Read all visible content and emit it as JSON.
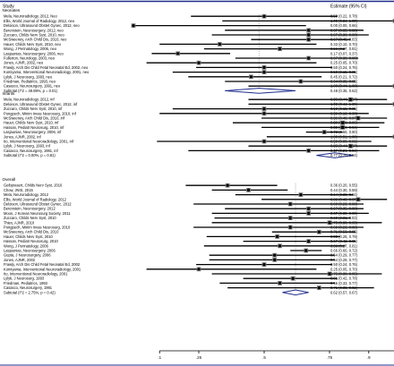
{
  "header": {
    "study_label": "Study",
    "estimate_label": "Estimate (95% CI)"
  },
  "chart_data": {
    "type": "forest",
    "xticks": [
      ".1",
      ".25",
      ".5",
      ".75",
      ".9",
      "1"
    ],
    "xtick_values": [
      0.1,
      0.25,
      0.5,
      0.75,
      0.9,
      1.0
    ],
    "xlim": [
      0.0,
      1.0
    ],
    "sections": [
      {
        "title": "Neonates",
        "rows": [
          {
            "label": "Mela, Neuroradiology, 2012, Neo",
            "est": 0.5,
            "lo": 0.22,
            "hi": 0.78,
            "text": "0.50 (0.22, 0.78)"
          },
          {
            "label": "Ellis, World Journal of Radiology, 2012, neo",
            "est": 1.0,
            "lo": 0.34,
            "hi": 1.0,
            "text": "1.00 (0.34, 1.00)"
          },
          {
            "label": "Deloison, Ultrasound Obstet Gynec, 2012, neo",
            "est": 0.0,
            "lo": 0.0,
            "hi": 0.66,
            "text": "0.00 (0.00, 0.66)"
          },
          {
            "label": "Berenstein, Neurosurgery, 2012, neo",
            "est": 0.67,
            "lo": 0.35,
            "hi": 0.88,
            "text": "0.67 (0.35, 0.88)"
          },
          {
            "label": "Zuccaro, Childs Nerv Syst, 2010, neo",
            "est": 0.67,
            "lo": 0.3,
            "hi": 0.9,
            "text": "0.67 (0.30, 0.90)"
          },
          {
            "label": "McSweeney, Arch Child Dis, 2010, neo",
            "est": 0.67,
            "lo": 0.45,
            "hi": 0.83,
            "text": "0.67 (0.45, 0.83)"
          },
          {
            "label": "Hauer, Childs Nerv Syst, 2010, neo",
            "est": 0.33,
            "lo": 0.1,
            "hi": 0.7,
            "text": "0.33 (0.10, 0.70)"
          },
          {
            "label": "Wong, J Perinatology, 2006, neo",
            "est": 0.56,
            "lo": 0.27,
            "hi": 0.81,
            "text": "0.56 (0.27, 0.81)"
          },
          {
            "label": "Lasjaunias, Neurosurgery, 2006, neo",
            "est": 0.17,
            "lo": 0.07,
            "hi": 0.37,
            "text": "0.17 (0.07, 0.37)"
          },
          {
            "label": "Fullerton, Neurology, 2003, neo",
            "est": 0.67,
            "lo": 0.39,
            "hi": 0.86,
            "text": "0.67 (0.39, 0.86)"
          },
          {
            "label": "Jones, AJNR, 2002, neo",
            "est": 0.25,
            "lo": 0.05,
            "hi": 0.7,
            "text": "0.25 (0.05, 0.70)"
          },
          {
            "label": "Frawly, Arch Dis Child Fetal Neonatal Ed, 2002, neo",
            "est": 0.5,
            "lo": 0.24,
            "hi": 0.76,
            "text": "0.50 (0.24, 0.76)"
          },
          {
            "label": "Komiyama, Interventional Neuroradiology, 2001, neo",
            "est": 0.5,
            "lo": 0.15,
            "hi": 0.85,
            "text": "0.50 (0.15, 0.85)"
          },
          {
            "label": "Lylyk, J Neurosurg, 1993, neo",
            "est": 0.45,
            "lo": 0.21,
            "hi": 0.72,
            "text": "0.45 (0.21, 0.72)"
          },
          {
            "label": "Friedman, Pediatrics, 1993, neo",
            "est": 0.64,
            "lo": 0.35,
            "hi": 0.85,
            "text": "0.64 (0.35, 0.85)"
          },
          {
            "label": "Casasco, Neurosurgery, 1991, neo",
            "est": 1.0,
            "lo": 0.44,
            "hi": 1.0,
            "text": "1.00 (0.44, 1.00)"
          }
        ],
        "subtotal": {
          "label": "Subtotal (I^2 = 49.89%, p = 0.01)",
          "est": 0.48,
          "lo": 0.35,
          "hi": 0.62,
          "text": "0.48 (0.35, 0.62)"
        }
      },
      {
        "title": "Infants",
        "rows": [
          {
            "label": "Mela, Neuroradiology, 2012, inf",
            "est": 0.83,
            "lo": 0.44,
            "hi": 0.97,
            "text": "0.83 (0.44, 0.97)"
          },
          {
            "label": "Deloison, Ultrasound Obstet Gynec, 2012, inf",
            "est": 1.0,
            "lo": 0.44,
            "hi": 1.0,
            "text": "1.00 (0.44, 1.00)"
          },
          {
            "label": "Zuccaro, Childs Nerv Syst, 2010, inf",
            "est": 0.5,
            "lo": 0.15,
            "hi": 0.85,
            "text": "0.50 (0.15, 0.85)"
          },
          {
            "label": "Pongpech, Minim Invas Neurosurg, 2010, inf",
            "est": 0.5,
            "lo": 0.1,
            "hi": 0.9,
            "text": "0.50 (0.10, 0.90)"
          },
          {
            "label": "McSweeney, Arch Child Dis, 2010, inf",
            "est": 0.86,
            "lo": 0.49,
            "hi": 0.97,
            "text": "0.86 (0.49, 0.97)"
          },
          {
            "label": "Hauer, Childs Nerv Syst, 2010, inf",
            "est": 0.8,
            "lo": 0.38,
            "hi": 0.96,
            "text": "0.80 (0.38, 0.96)"
          },
          {
            "label": "Hassan, Pediatr Neurosurg, 2010, inf",
            "est": 0.8,
            "lo": 0.49,
            "hi": 0.94,
            "text": "0.80 (0.49, 0.94)"
          },
          {
            "label": "Lasjaunias, Neurosurgery, 2006, inf",
            "est": 0.73,
            "lo": 0.66,
            "hi": 0.8,
            "text": "0.73 (0.66, 0.80)"
          },
          {
            "label": "Jones, AJNR, 2002, inf",
            "est": 1.0,
            "lo": 0.51,
            "hi": 1.0,
            "text": "1.00 (0.51, 1.00)"
          },
          {
            "label": "Ito, Interventional Neuroradiology, 2001, inf",
            "est": 0.5,
            "lo": 0.09,
            "hi": 0.91,
            "text": "0.50 (0.09, 0.91)"
          },
          {
            "label": "Lylyk, J Neurosurg, 1993, inf",
            "est": 0.83,
            "lo": 0.44,
            "hi": 0.97,
            "text": "0.83 (0.44, 0.97)"
          },
          {
            "label": "Casasco, Neurosurgery, 1991, inf",
            "est": 0.67,
            "lo": 0.21,
            "hi": 0.94,
            "text": "0.67 (0.21, 0.94)"
          }
        ],
        "subtotal": {
          "label": "Subtotal (I^2 = 0.00%, p = 0.81)",
          "est": 0.77,
          "lo": 0.7,
          "hi": 0.84,
          "text": "0.77 (0.70, 0.84)"
        }
      },
      {
        "title": "Overall",
        "rows": [
          {
            "label": "Geibprasert, Childs Nerv Syst, 2010",
            "est": 0.36,
            "lo": 0.2,
            "hi": 0.55,
            "text": "0.36 (0.20, 0.55)"
          },
          {
            "label": "Chow, JNIS, 2015",
            "est": 0.44,
            "lo": 0.3,
            "hi": 0.59,
            "text": "0.44 (0.30, 0.59)"
          },
          {
            "label": "Mela, Neuroradiology, 2012",
            "est": 0.64,
            "lo": 0.39,
            "hi": 0.84,
            "text": "0.64 (0.39, 0.84)"
          },
          {
            "label": "Ellis, World Journal of Radiology, 2012",
            "est": 0.86,
            "lo": 0.49,
            "hi": 0.97,
            "text": "0.86 (0.49, 0.97)"
          },
          {
            "label": "Deloison, Ultrasound Obstet Gynec, 2012",
            "est": 0.6,
            "lo": 0.23,
            "hi": 0.88,
            "text": "0.60 (0.23, 0.88)"
          },
          {
            "label": "Berenstein, Neurosurgery, 2012",
            "est": 0.67,
            "lo": 0.35,
            "hi": 0.88,
            "text": "0.67 (0.35, 0.88)"
          },
          {
            "label": "Moon, J Korean Neurosurg Society, 2011",
            "est": 0.67,
            "lo": 0.3,
            "hi": 0.9,
            "text": "0.67 (0.30, 0.90)"
          },
          {
            "label": "Zuccaro, Childs Nerv Syst, 2010",
            "est": 0.6,
            "lo": 0.31,
            "hi": 0.83,
            "text": "0.60 (0.31, 0.83)"
          },
          {
            "label": "Thiex, AJNR, 2010",
            "est": 0.75,
            "lo": 0.3,
            "hi": 0.95,
            "text": "0.75 (0.30, 0.95)"
          },
          {
            "label": "Pongpech, Minim Invas Neurosurg, 2010",
            "est": 0.6,
            "lo": 0.23,
            "hi": 0.88,
            "text": "0.60 (0.23, 0.88)"
          },
          {
            "label": "McSweeney, Arch Child Dis, 2010",
            "est": 0.71,
            "lo": 0.53,
            "hi": 0.85,
            "text": "0.71 (0.53, 0.85)"
          },
          {
            "label": "Hauer, Childs Nerv Syst, 2010",
            "est": 0.55,
            "lo": 0.28,
            "hi": 0.79,
            "text": "0.55 (0.28, 0.79)"
          },
          {
            "label": "Hassan, Pediatr Neurosurg, 2010",
            "est": 0.67,
            "lo": 0.42,
            "hi": 0.85,
            "text": "0.67 (0.42, 0.85)"
          },
          {
            "label": "Wong, J Perinatology, 2006",
            "est": 0.56,
            "lo": 0.27,
            "hi": 0.81,
            "text": "0.56 (0.27, 0.81)"
          },
          {
            "label": "Lasjaunias, Neurosurgery, 2006",
            "est": 0.66,
            "lo": 0.6,
            "hi": 0.72,
            "text": "0.66 (0.60, 0.72)"
          },
          {
            "label": "Gupta, J Neurosurgery, 2006",
            "est": 0.54,
            "lo": 0.29,
            "hi": 0.77,
            "text": "0.54 (0.29, 0.77)"
          },
          {
            "label": "Jones, AJNR, 2002",
            "est": 0.54,
            "lo": 0.29,
            "hi": 0.77,
            "text": "0.54 (0.29, 0.77)"
          },
          {
            "label": "Frawly, Arch Dis Child Fetal Neonatal Ed, 2002",
            "est": 0.5,
            "lo": 0.24,
            "hi": 0.76,
            "text": "0.50 (0.24, 0.76)"
          },
          {
            "label": "Komiyama, Interventional Neuroradiology, 2001",
            "est": 0.25,
            "lo": 0.05,
            "hi": 0.7,
            "text": "0.25 (0.05, 0.70)"
          },
          {
            "label": "Ito, Interventional Neuroradiology, 2001",
            "est": 0.75,
            "lo": 0.3,
            "hi": 0.95,
            "text": "0.75 (0.30, 0.95)"
          },
          {
            "label": "Lylyk, J Neurosurg, 1993",
            "est": 0.61,
            "lo": 0.42,
            "hi": 0.78,
            "text": "0.61 (0.42, 0.78)"
          },
          {
            "label": "Friedman, Pediatrics, 1993",
            "est": 0.56,
            "lo": 0.33,
            "hi": 0.77,
            "text": "0.56 (0.33, 0.77)"
          },
          {
            "label": "Casasco, Neurosurgery, 1991",
            "est": 0.71,
            "lo": 0.36,
            "hi": 0.92,
            "text": "0.71 (0.36, 0.92)"
          }
        ],
        "subtotal": {
          "label": "Subtotal (I^2 = 2.75%, p = 0.42)",
          "est": 0.62,
          "lo": 0.57,
          "hi": 0.67,
          "text": "0.62 (0.57, 0.67)"
        }
      }
    ],
    "colors": {
      "line": "#000000",
      "box": "#7f7f7f",
      "point": "#000000",
      "diamond": "#1f2e8c",
      "ref": "#8a8a8a",
      "border": "#1f2e8c"
    }
  }
}
